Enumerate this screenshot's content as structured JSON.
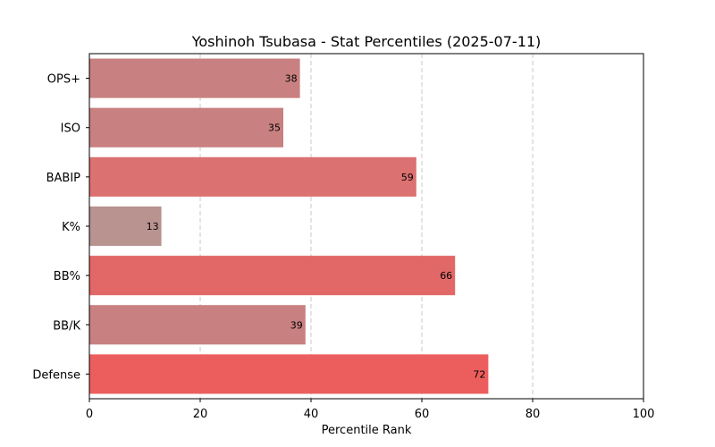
{
  "chart_data": {
    "type": "bar",
    "orientation": "horizontal",
    "title": "Yoshinoh Tsubasa - Stat Percentiles (2025-07-11)",
    "xlabel": "Percentile Rank",
    "ylabel": "",
    "xlim": [
      0,
      100
    ],
    "xticks": [
      0,
      20,
      40,
      60,
      80,
      100
    ],
    "grid": "x dashed",
    "categories": [
      "OPS+",
      "ISO",
      "BABIP",
      "K%",
      "BB%",
      "BB/K",
      "Defense"
    ],
    "values": [
      38,
      35,
      59,
      13,
      66,
      39,
      72
    ],
    "colors": [
      "#c98080",
      "#c98080",
      "#dc7171",
      "#b89390",
      "#e26868",
      "#c98080",
      "#ec5e5e"
    ]
  }
}
